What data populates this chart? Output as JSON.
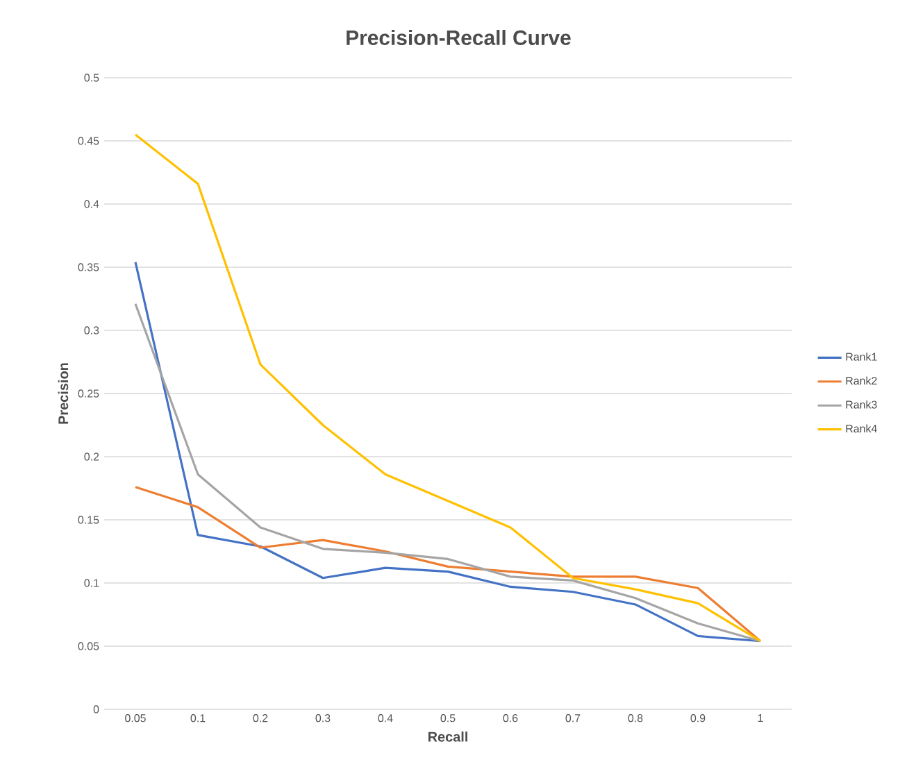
{
  "chart_data": {
    "type": "line",
    "title": "Precision-Recall Curve",
    "xlabel": "Recall",
    "ylabel": "Precision",
    "categories": [
      "0.05",
      "0.1",
      "0.2",
      "0.3",
      "0.4",
      "0.5",
      "0.6",
      "0.7",
      "0.8",
      "0.9",
      "1"
    ],
    "series": [
      {
        "name": "Rank1",
        "color": "#4472c4",
        "values": [
          0.354,
          0.138,
          0.129,
          0.104,
          0.112,
          0.109,
          0.097,
          0.093,
          0.083,
          0.058,
          0.054
        ]
      },
      {
        "name": "Rank2",
        "color": "#ed7d31",
        "values": [
          0.176,
          0.16,
          0.128,
          0.134,
          0.125,
          0.113,
          0.109,
          0.105,
          0.105,
          0.096,
          0.054
        ]
      },
      {
        "name": "Rank3",
        "color": "#a5a5a5",
        "values": [
          0.321,
          0.186,
          0.144,
          0.127,
          0.124,
          0.119,
          0.105,
          0.102,
          0.088,
          0.068,
          0.054
        ]
      },
      {
        "name": "Rank4",
        "color": "#ffc000",
        "values": [
          0.455,
          0.416,
          0.273,
          0.225,
          0.186,
          0.165,
          0.144,
          0.104,
          0.095,
          0.084,
          0.054
        ]
      }
    ],
    "ylim": [
      0,
      0.5
    ],
    "yticks": [
      0,
      0.05,
      0.1,
      0.15,
      0.2,
      0.25,
      0.3,
      0.35,
      0.4,
      0.45,
      0.5
    ],
    "grid": "y",
    "legend": "right",
    "marker": "none",
    "line_style": "solid"
  }
}
